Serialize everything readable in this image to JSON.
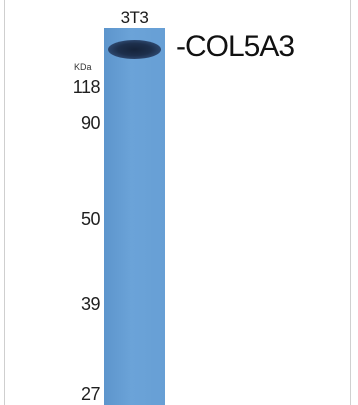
{
  "lane": {
    "label": "3T3"
  },
  "band": {
    "label": "-COL5A3"
  },
  "axis": {
    "unit": "KDa",
    "markers": [
      "118",
      "90",
      "50",
      "39",
      "27"
    ]
  },
  "colors": {
    "lane": "#6aa2d6",
    "band": "#1b2b45"
  }
}
